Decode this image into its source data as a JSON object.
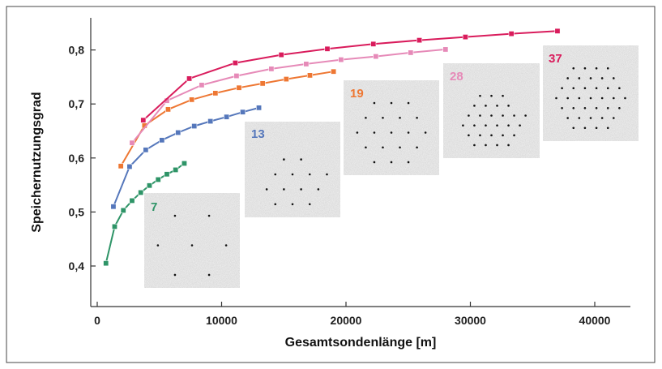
{
  "chart_data": {
    "type": "line",
    "title": "",
    "xlabel": "Gesamtsondenlänge [m]",
    "ylabel": "Speichernutzungsgrad",
    "xlim": [
      0,
      43000
    ],
    "ylim": [
      0.37,
      0.88
    ],
    "x_ticks": [
      0,
      10000,
      20000,
      30000,
      40000
    ],
    "x_tick_labels": [
      "0",
      "10000",
      "20000",
      "30000",
      "40000"
    ],
    "y_ticks": [
      0.4,
      0.5,
      0.6,
      0.7,
      0.8
    ],
    "y_tick_labels": [
      "0,4",
      "0,5",
      "0,6",
      "0,7",
      "0,8"
    ],
    "grid": false,
    "legend": "none",
    "series": [
      {
        "color": "#2e9467",
        "x": [
          700,
          1400,
          2100,
          2800,
          3500,
          4200,
          4900,
          5600,
          6300,
          7000
        ],
        "y": [
          0.405,
          0.473,
          0.503,
          0.521,
          0.536,
          0.549,
          0.56,
          0.57,
          0.578,
          0.59
        ]
      },
      {
        "color": "#5577bb",
        "x": [
          1300,
          2600,
          3900,
          5200,
          6500,
          7800,
          9100,
          10400,
          11700,
          13000
        ],
        "y": [
          0.51,
          0.584,
          0.615,
          0.633,
          0.647,
          0.659,
          0.668,
          0.676,
          0.685,
          0.693
        ]
      },
      {
        "color": "#ee7733",
        "x": [
          1900,
          3800,
          5700,
          7600,
          9500,
          11400,
          13300,
          15200,
          17100,
          19000
        ],
        "y": [
          0.585,
          0.66,
          0.69,
          0.708,
          0.72,
          0.73,
          0.738,
          0.746,
          0.753,
          0.76
        ]
      },
      {
        "color": "#e68ab8",
        "x": [
          2800,
          5600,
          8400,
          11200,
          14000,
          16800,
          19600,
          22400,
          25200,
          28000
        ],
        "y": [
          0.628,
          0.706,
          0.735,
          0.752,
          0.765,
          0.774,
          0.782,
          0.788,
          0.795,
          0.801
        ]
      },
      {
        "color": "#d91c5c",
        "x": [
          3700,
          7400,
          11100,
          14800,
          18500,
          22200,
          25900,
          29600,
          33300,
          37000
        ],
        "y": [
          0.67,
          0.747,
          0.776,
          0.791,
          0.802,
          0.811,
          0.818,
          0.824,
          0.83,
          0.835
        ]
      }
    ],
    "insets": [
      {
        "label": "7",
        "color": "#2e9467",
        "dot_count": 7
      },
      {
        "label": "13",
        "color": "#5577bb",
        "dot_count": 13
      },
      {
        "label": "19",
        "color": "#ee7733",
        "dot_count": 19
      },
      {
        "label": "28",
        "color": "#e68ab8",
        "dot_count": 28
      },
      {
        "label": "37",
        "color": "#d91c5c",
        "dot_count": 37
      }
    ]
  }
}
